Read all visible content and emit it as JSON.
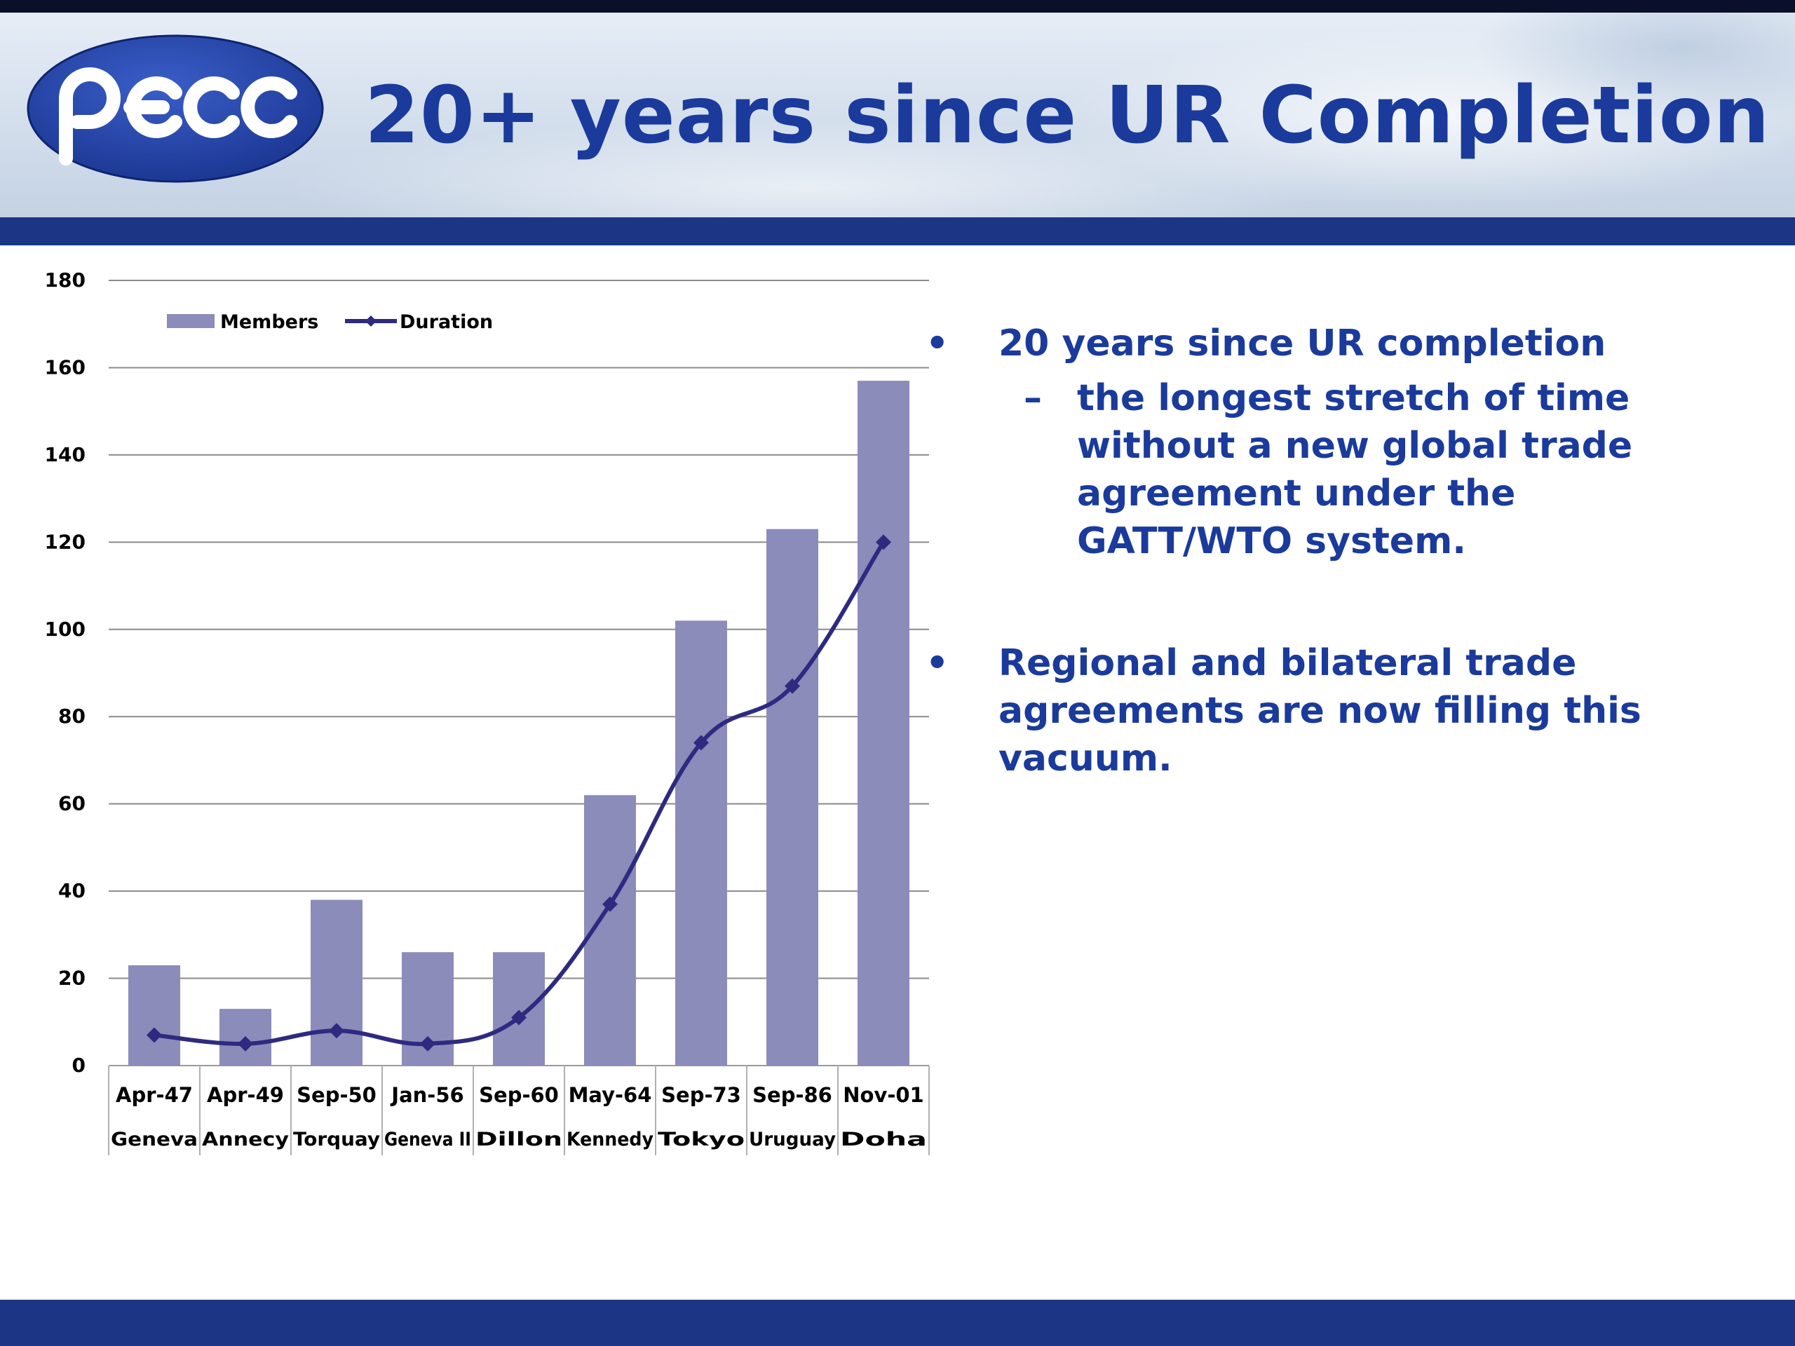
{
  "slide": {
    "title": "20+ years since UR Completion",
    "logo_text": "pecc",
    "bullets": [
      {
        "text": "20 years since UR completion",
        "sub": "the longest stretch of time without a new global trade agreement under the GATT/WTO system."
      },
      {
        "text": "Regional and bilateral trade agreements are now filling this vacuum."
      }
    ],
    "bullet_glyph": "•",
    "dash_glyph": "–"
  },
  "colors": {
    "brand_blue": "#1a3a9c",
    "band_blue": "#1c3585",
    "bar_fill": "#8b8cba",
    "line": "#2e2a80"
  },
  "chart_data": {
    "type": "bar",
    "categories": [
      "Apr-47",
      "Apr-49",
      "Sep-50",
      "Jan-56",
      "Sep-60",
      "May-64",
      "Sep-73",
      "Sep-86",
      "Nov-01"
    ],
    "subcategories": [
      "Geneva",
      "Annecy",
      "Torquay",
      "Geneva II",
      "Dillon",
      "Kennedy",
      "Tokyo",
      "Uruguay",
      "Doha"
    ],
    "series": [
      {
        "name": "Members",
        "type": "bar",
        "values": [
          23,
          13,
          38,
          26,
          26,
          62,
          102,
          123,
          157
        ]
      },
      {
        "name": "Duration",
        "type": "line",
        "values": [
          7,
          5,
          8,
          5,
          11,
          37,
          74,
          87,
          120
        ]
      }
    ],
    "yticks": [
      "0",
      "20",
      "40",
      "60",
      "80",
      "100",
      "120",
      "140",
      "160",
      "180"
    ],
    "ylim": [
      0,
      180
    ],
    "grid": true,
    "legend": "top-left"
  }
}
